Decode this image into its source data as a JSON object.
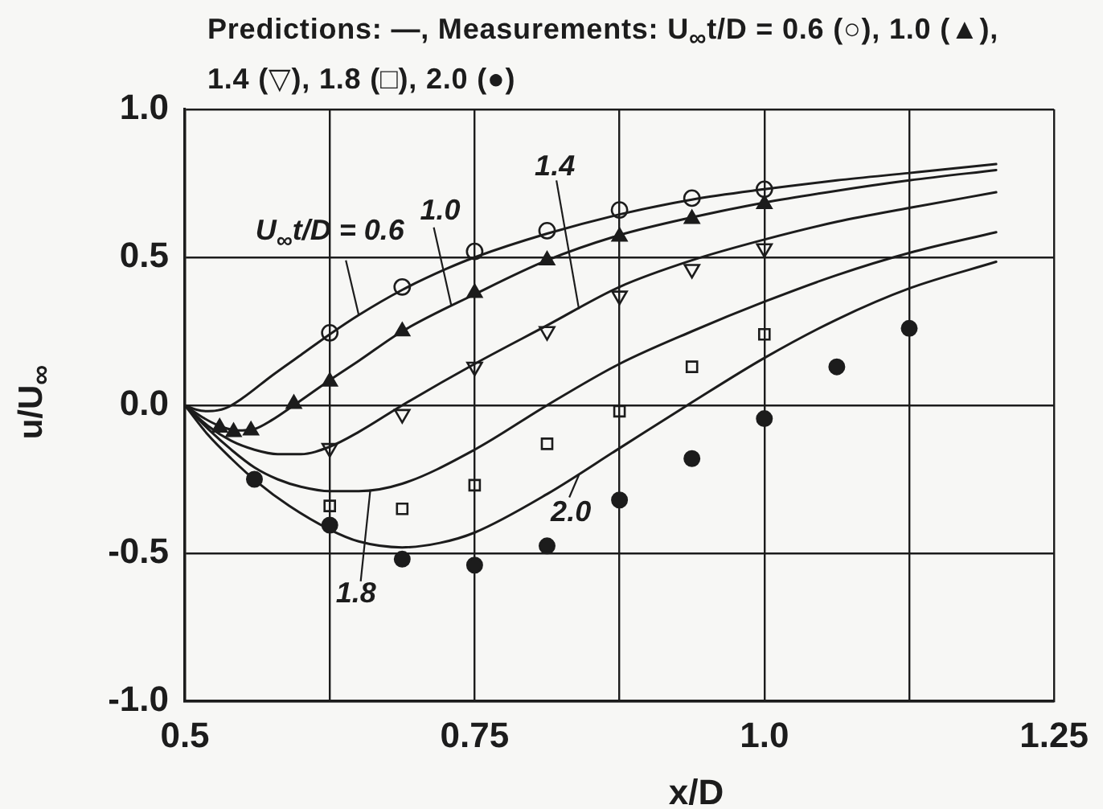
{
  "chart_data": {
    "type": "line",
    "title": "Predictions: —, Measurements: U$_{∞}$t/D = 0.6 (○), 1.0 (▲), 1.4 (▽), 1.8 (□), 2.0 (●)",
    "xlabel": "x/D",
    "ylabel": "u/U$_{∞}$",
    "xlim": [
      0.5,
      1.25
    ],
    "xticks": [
      0.5,
      {
        "value": 0.625,
        "label": null
      },
      0.75,
      {
        "value": 0.875,
        "label": null
      },
      {
        "value": 1,
        "label": "1.0"
      },
      {
        "value": 1.125,
        "label": null
      },
      1.25
    ],
    "ylim": [
      -1,
      1
    ],
    "yticks": [
      {
        "value": -1,
        "label": "-1.0"
      },
      -0.5,
      {
        "value": 0,
        "label": "0.0"
      },
      0.5,
      {
        "value": 1,
        "label": "1.0"
      }
    ],
    "grid": true,
    "series": [
      {
        "type": "line",
        "color": "#1c1c1c",
        "marker": "none",
        "x": [
          0.5,
          0.51,
          0.52,
          0.535,
          0.55,
          0.575,
          0.6,
          0.625,
          0.65,
          0.6875,
          0.725,
          0.75,
          0.8125,
          0.875,
          0.9375,
          1.0,
          1.0625,
          1.125,
          1.2
        ],
        "values": [
          0,
          -0.015,
          -0.02,
          -0.01,
          0.025,
          0.1,
          0.17,
          0.24,
          0.305,
          0.39,
          0.46,
          0.5,
          0.58,
          0.645,
          0.695,
          0.73,
          0.76,
          0.785,
          0.815
        ]
      },
      {
        "type": "line",
        "color": "#1c1c1c",
        "marker": "none",
        "x": [
          0.5,
          0.515,
          0.53,
          0.545,
          0.56,
          0.575,
          0.594,
          0.625,
          0.65,
          0.6875,
          0.75,
          0.8125,
          0.875,
          0.9375,
          1.0,
          1.0625,
          1.125,
          1.2
        ],
        "values": [
          0,
          -0.04,
          -0.07,
          -0.085,
          -0.08,
          -0.05,
          0,
          0.085,
          0.15,
          0.25,
          0.375,
          0.49,
          0.575,
          0.635,
          0.685,
          0.725,
          0.76,
          0.795
        ]
      },
      {
        "type": "line",
        "color": "#1c1c1c",
        "marker": "none",
        "x": [
          0.5,
          0.52,
          0.54,
          0.56,
          0.58,
          0.6,
          0.625,
          0.65,
          0.6875,
          0.75,
          0.8125,
          0.875,
          0.9375,
          1.0,
          1.0625,
          1.125,
          1.2
        ],
        "values": [
          0,
          -0.07,
          -0.12,
          -0.15,
          -0.165,
          -0.165,
          -0.14,
          -0.09,
          0,
          0.14,
          0.27,
          0.4,
          0.49,
          0.56,
          0.62,
          0.667,
          0.72
        ]
      },
      {
        "type": "line",
        "color": "#1c1c1c",
        "marker": "none",
        "x": [
          0.5,
          0.52,
          0.54,
          0.56,
          0.58,
          0.6,
          0.625,
          0.65,
          0.6875,
          0.75,
          0.8125,
          0.875,
          0.9375,
          1.0,
          1.0625,
          1.125,
          1.2
        ],
        "values": [
          0,
          -0.08,
          -0.15,
          -0.21,
          -0.25,
          -0.275,
          -0.29,
          -0.29,
          -0.265,
          -0.15,
          0,
          0.14,
          0.25,
          0.35,
          0.44,
          0.515,
          0.585
        ]
      },
      {
        "type": "line",
        "color": "#1c1c1c",
        "marker": "none",
        "x": [
          0.5,
          0.52,
          0.54,
          0.5625,
          0.59,
          0.625,
          0.65,
          0.6875,
          0.72,
          0.75,
          0.8125,
          0.875,
          0.9375,
          1.0,
          1.0625,
          1.125,
          1.2
        ],
        "values": [
          0,
          -0.1,
          -0.18,
          -0.26,
          -0.34,
          -0.42,
          -0.46,
          -0.48,
          -0.465,
          -0.43,
          -0.3,
          -0.145,
          0.01,
          0.16,
          0.29,
          0.395,
          0.485
        ]
      },
      {
        "type": "scatter",
        "color": "#1c1c1c",
        "marker": "circle-open",
        "x": [
          0.625,
          0.6875,
          0.75,
          0.8125,
          0.875,
          0.9375,
          1.0
        ],
        "values": [
          0.245,
          0.4,
          0.52,
          0.59,
          0.66,
          0.7,
          0.73
        ]
      },
      {
        "type": "scatter",
        "color": "#1c1c1c",
        "marker": "triangle",
        "x": [
          0.53,
          0.542,
          0.557,
          0.594,
          0.625,
          0.6875,
          0.75,
          0.8125,
          0.875,
          0.9375,
          1.0
        ],
        "values": [
          -0.075,
          -0.09,
          -0.085,
          0.005,
          0.08,
          0.25,
          0.38,
          0.49,
          0.57,
          0.63,
          0.68
        ]
      },
      {
        "type": "scatter",
        "color": "#1c1c1c",
        "marker": "triangle-down-open",
        "x": [
          0.625,
          0.6875,
          0.75,
          0.8125,
          0.875,
          0.9375,
          1.0
        ],
        "values": [
          -0.145,
          -0.03,
          0.13,
          0.25,
          0.37,
          0.46,
          0.53
        ]
      },
      {
        "type": "scatter",
        "color": "#1c1c1c",
        "marker": "square-open",
        "x": [
          0.625,
          0.6875,
          0.75,
          0.8125,
          0.875,
          0.9375,
          1.0
        ],
        "values": [
          -0.34,
          -0.35,
          -0.27,
          -0.13,
          -0.02,
          0.13,
          0.24
        ]
      },
      {
        "type": "scatter",
        "color": "#1c1c1c",
        "marker": "circle",
        "x": [
          0.56,
          0.625,
          0.6875,
          0.75,
          0.8125,
          0.875,
          0.9375,
          1.0,
          1.0625,
          1.125
        ],
        "values": [
          -0.25,
          -0.405,
          -0.52,
          -0.54,
          -0.475,
          -0.32,
          -0.18,
          -0.045,
          0.13,
          0.26
        ]
      }
    ],
    "annotations": [
      {
        "text": "U$_{∞}$t/D = 0.6",
        "x": 0.65,
        "y": 0.305
      },
      {
        "text": "1.0",
        "x": 0.73,
        "y": 0.335
      },
      {
        "text": "1.4",
        "x": 0.84,
        "y": 0.325
      },
      {
        "text": "1.8",
        "x": 0.66,
        "y": -0.285
      },
      {
        "text": "2.0",
        "x": 0.84,
        "y": -0.235
      }
    ]
  }
}
